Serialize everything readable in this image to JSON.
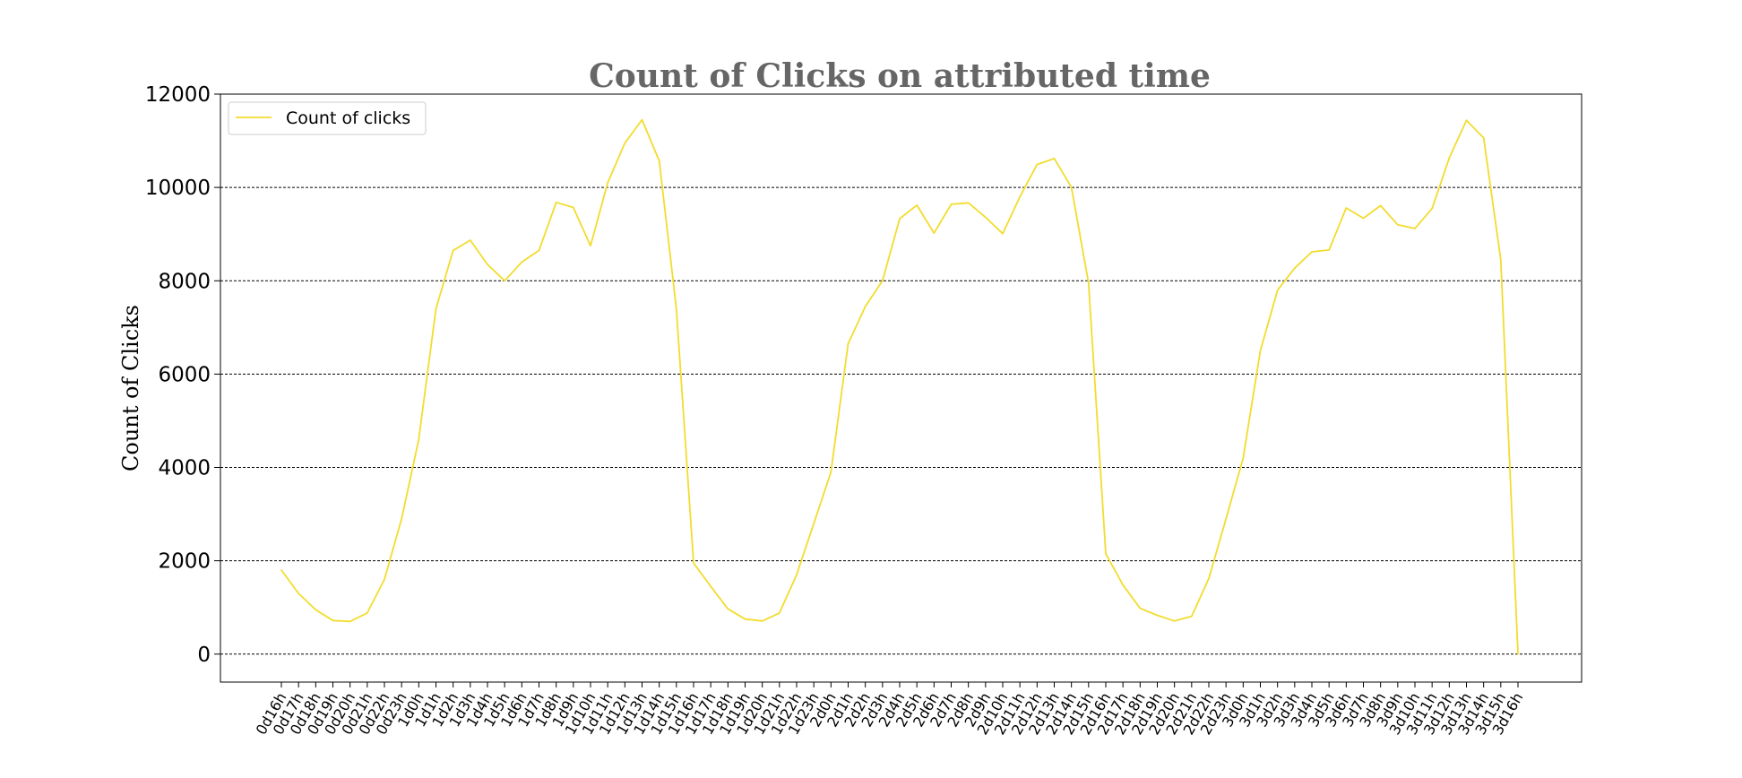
{
  "chart_data": {
    "type": "line",
    "title": "Count of Clicks on attributed time",
    "xlabel": "",
    "ylabel": "Count of Clicks",
    "ylim": [
      -600,
      12000
    ],
    "yticks": [
      0,
      2000,
      4000,
      6000,
      8000,
      10000,
      12000
    ],
    "ytick_labels": [
      "0",
      "2000",
      "4000",
      "6000",
      "8000",
      "10000",
      "12000"
    ],
    "grid": "horizontal dashed",
    "legend_position": "top-left",
    "line_color": "#f2dc2e",
    "categories": [
      "0d16h",
      "0d17h",
      "0d18h",
      "0d19h",
      "0d20h",
      "0d21h",
      "0d22h",
      "0d23h",
      "1d0h",
      "1d1h",
      "1d2h",
      "1d3h",
      "1d4h",
      "1d5h",
      "1d6h",
      "1d7h",
      "1d8h",
      "1d9h",
      "1d10h",
      "1d11h",
      "1d12h",
      "1d13h",
      "1d14h",
      "1d15h",
      "1d16h",
      "1d17h",
      "1d18h",
      "1d19h",
      "1d20h",
      "1d21h",
      "1d22h",
      "1d23h",
      "2d0h",
      "2d1h",
      "2d2h",
      "2d3h",
      "2d4h",
      "2d5h",
      "2d6h",
      "2d7h",
      "2d8h",
      "2d9h",
      "2d10h",
      "2d11h",
      "2d12h",
      "2d13h",
      "2d14h",
      "2d15h",
      "2d16h",
      "2d17h",
      "2d18h",
      "2d19h",
      "2d20h",
      "2d21h",
      "2d22h",
      "2d23h",
      "3d0h",
      "3d1h",
      "3d2h",
      "3d3h",
      "3d4h",
      "3d5h",
      "3d6h",
      "3d7h",
      "3d8h",
      "3d9h",
      "3d10h",
      "3d11h",
      "3d12h",
      "3d13h",
      "3d14h",
      "3d15h",
      "3d16h"
    ],
    "series": [
      {
        "name": "Count of clicks",
        "values": [
          1800,
          1300,
          950,
          720,
          700,
          880,
          1600,
          2900,
          4600,
          7400,
          8650,
          8870,
          8350,
          8000,
          8400,
          8650,
          9680,
          9570,
          8750,
          10100,
          10950,
          11450,
          10570,
          7400,
          1950,
          1450,
          970,
          750,
          710,
          880,
          1700,
          2800,
          3900,
          6650,
          7450,
          8000,
          9330,
          9620,
          9020,
          9640,
          9670,
          9360,
          9010,
          9800,
          10490,
          10620,
          10000,
          7950,
          2150,
          1480,
          980,
          830,
          710,
          810,
          1620,
          2900,
          4200,
          6500,
          7800,
          8270,
          8620,
          8660,
          9560,
          9340,
          9610,
          9200,
          9120,
          9550,
          10630,
          11440,
          11060,
          8450,
          0
        ]
      }
    ]
  }
}
